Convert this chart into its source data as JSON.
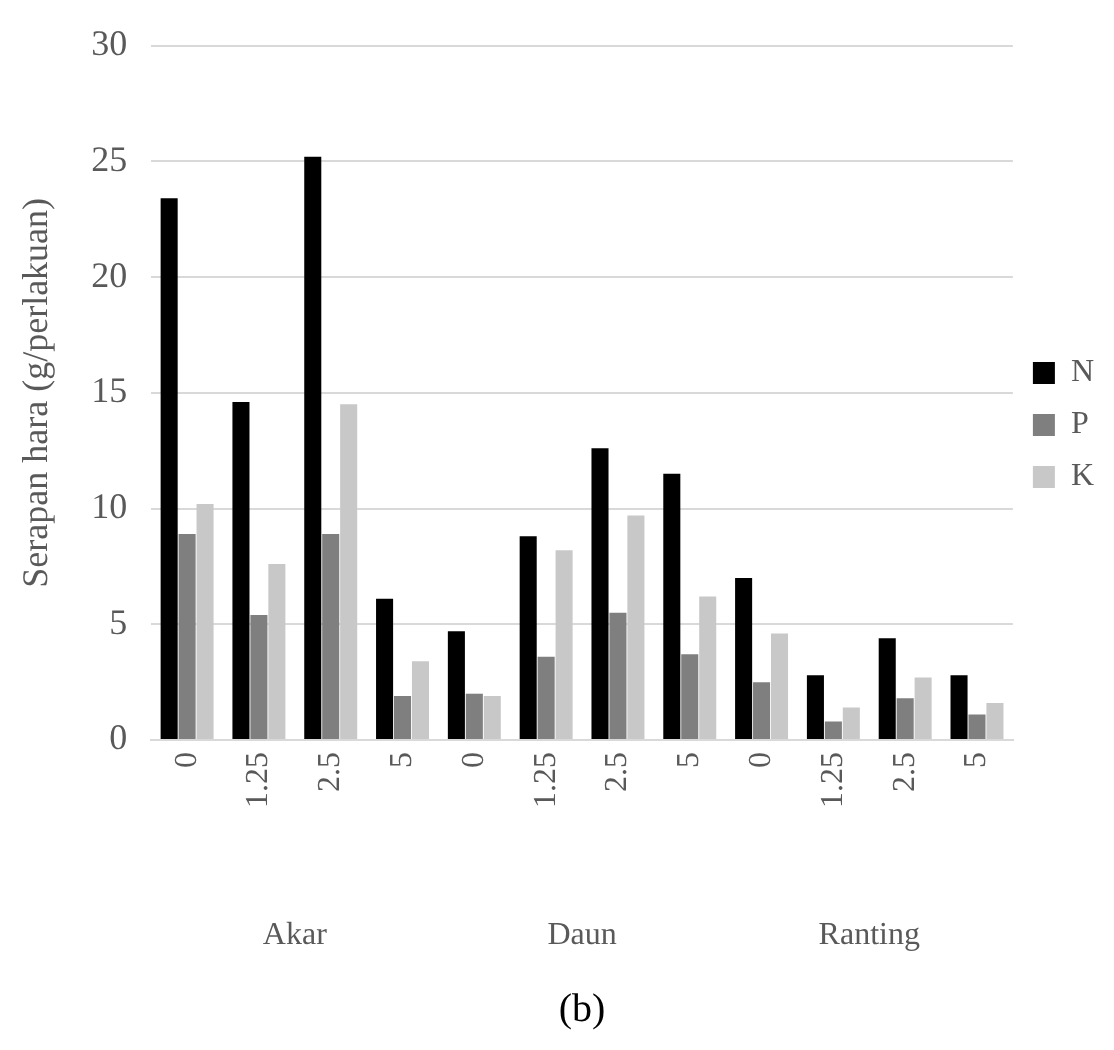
{
  "chart_data": {
    "type": "bar",
    "title": "(b)",
    "ylabel": "Serapan hara (g/perlakuan)",
    "categories": [
      "0",
      "1.25",
      "2.5",
      "5",
      "0",
      "1.25",
      "2.5",
      "5",
      "0",
      "1.25",
      "2.5",
      "5"
    ],
    "annotations": [
      "Akar",
      "Daun",
      "Ranting"
    ],
    "series": [
      {
        "name": "N",
        "color": "#000000",
        "values": [
          23.4,
          14.6,
          25.2,
          6.1,
          4.7,
          8.8,
          12.6,
          11.5,
          7.0,
          2.8,
          4.4,
          2.8
        ]
      },
      {
        "name": "P",
        "color": "#7f7f7f",
        "values": [
          8.9,
          5.4,
          8.9,
          1.9,
          2.0,
          3.6,
          5.5,
          3.7,
          2.5,
          0.8,
          1.8,
          1.1
        ]
      },
      {
        "name": "K",
        "color": "#c8c8c8",
        "values": [
          10.2,
          7.6,
          14.5,
          3.4,
          1.9,
          8.2,
          9.7,
          6.2,
          4.6,
          1.4,
          2.7,
          1.6
        ]
      }
    ],
    "ylim": [
      0,
      30
    ],
    "yticks": [
      0,
      5,
      10,
      15,
      20,
      25,
      30
    ],
    "grid": "y",
    "legend": "right"
  }
}
